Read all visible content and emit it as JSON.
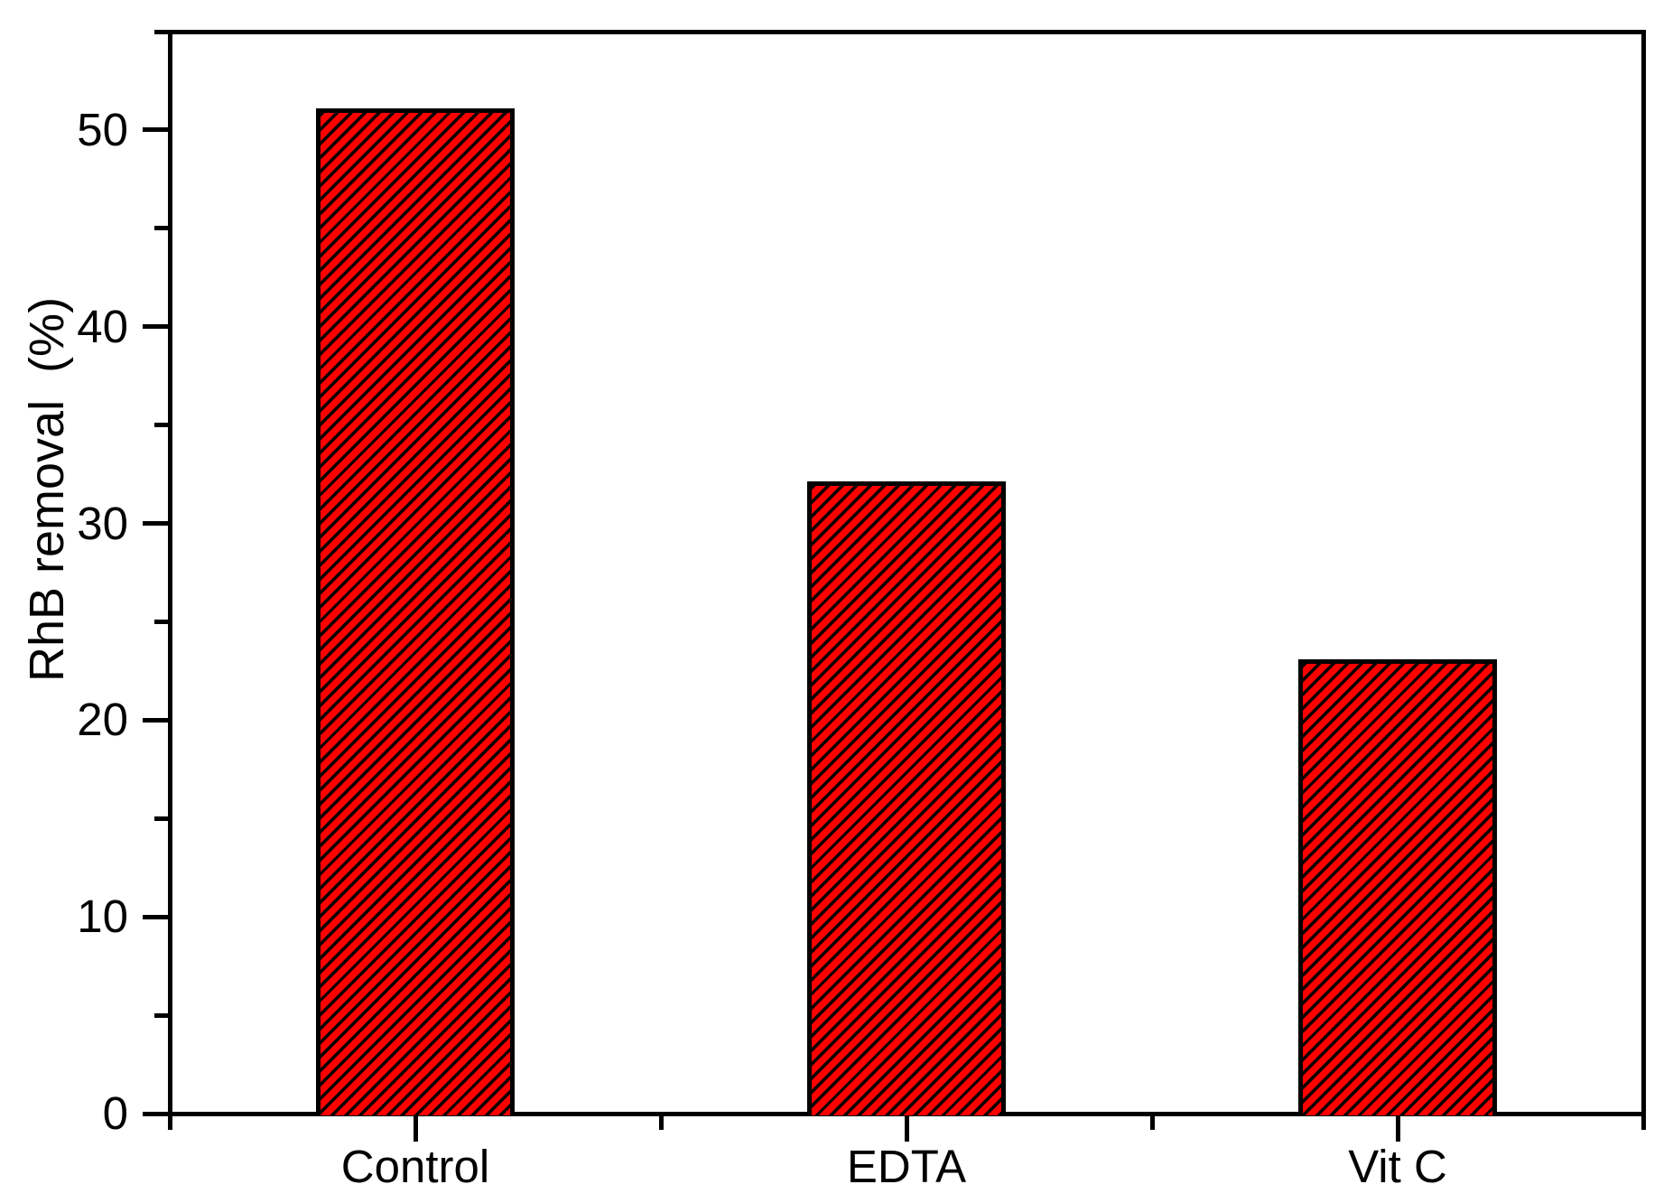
{
  "chart_data": {
    "type": "bar",
    "title": "",
    "categories": [
      "Control",
      "EDTA",
      "Vit C"
    ],
    "values": [
      51,
      32,
      23
    ],
    "xlabel": "",
    "ylabel": "RhB removal  (%)",
    "ylim": [
      0,
      55
    ],
    "y_major_ticks": [
      0,
      10,
      20,
      30,
      40,
      50
    ],
    "y_minor_tick_step": 5,
    "x_minor_ticks_between_categories": true,
    "grid": false,
    "legend": "none",
    "bar_fill_color": "#ff0000",
    "bar_hatch_style": "diagonal-forward-45deg",
    "bar_hatch_color": "#000000",
    "bar_border_color": "#000000",
    "frame_color": "#000000",
    "background_color": "#ffffff",
    "text_color": "#000000"
  }
}
